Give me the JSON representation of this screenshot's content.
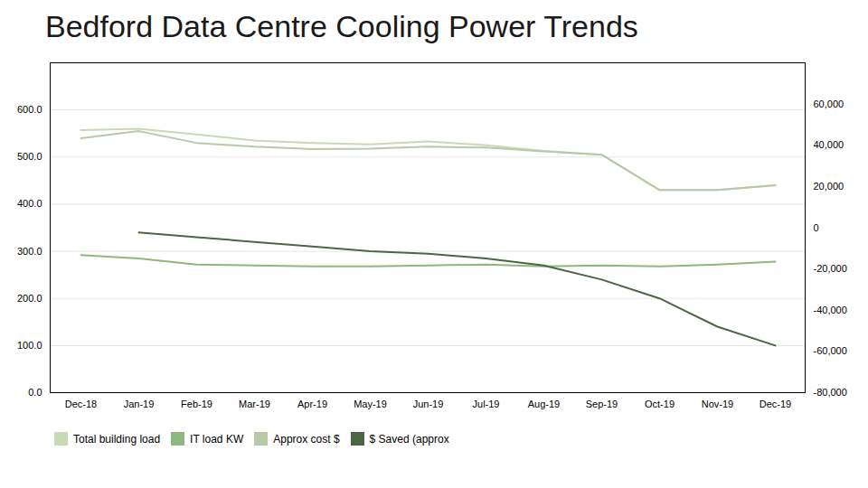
{
  "chart_data": {
    "type": "line",
    "title": "Bedford Data Centre Cooling Power Trends",
    "categories": [
      "Dec-18",
      "Jan-19",
      "Feb-19",
      "Mar-19",
      "Apr-19",
      "May-19",
      "Jun-19",
      "Jul-19",
      "Aug-19",
      "Sep-19",
      "Oct-19",
      "Nov-19",
      "Dec-19"
    ],
    "series": [
      {
        "name": "Total building load",
        "color": "#c8dab5",
        "values": [
          557,
          560,
          548,
          535,
          530,
          527,
          533,
          525,
          513,
          505,
          430,
          430,
          440
        ]
      },
      {
        "name": "IT load KW",
        "color": "#8db87e",
        "values": [
          292,
          285,
          272,
          270,
          268,
          268,
          270,
          272,
          268,
          270,
          268,
          272,
          278
        ]
      },
      {
        "name": "Approx cost $",
        "color": "#b8c9a8",
        "values": [
          540,
          555,
          530,
          522,
          517,
          518,
          522,
          520,
          512,
          505,
          430,
          430,
          440
        ]
      },
      {
        "name": "$ Saved (approx",
        "color": "#4a6741",
        "values": [
          null,
          340,
          330,
          320,
          310,
          300,
          295,
          285,
          270,
          240,
          200,
          140,
          100
        ]
      }
    ],
    "ylim": [
      0,
      700
    ],
    "yticks": [
      {
        "value": 0,
        "label": "0.0"
      },
      {
        "value": 100,
        "label": "100.0"
      },
      {
        "value": 200,
        "label": "200.0"
      },
      {
        "value": 300,
        "label": "300.0"
      },
      {
        "value": 400,
        "label": "400.0"
      },
      {
        "value": 500,
        "label": "500.0"
      },
      {
        "value": 600,
        "label": "600.0"
      }
    ],
    "y2lim": [
      -80000,
      80000
    ],
    "y2ticks": [
      {
        "value": -80000,
        "label": "-80,000"
      },
      {
        "value": -60000,
        "label": "-60,000"
      },
      {
        "value": -40000,
        "label": "-40,000"
      },
      {
        "value": -20000,
        "label": "-20,000"
      },
      0,
      {
        "value": 20000,
        "label": "20,000"
      },
      {
        "value": 40000,
        "label": "40,000"
      },
      {
        "value": 60000,
        "label": "60,000"
      }
    ],
    "grid": true,
    "legend": "bottom"
  }
}
